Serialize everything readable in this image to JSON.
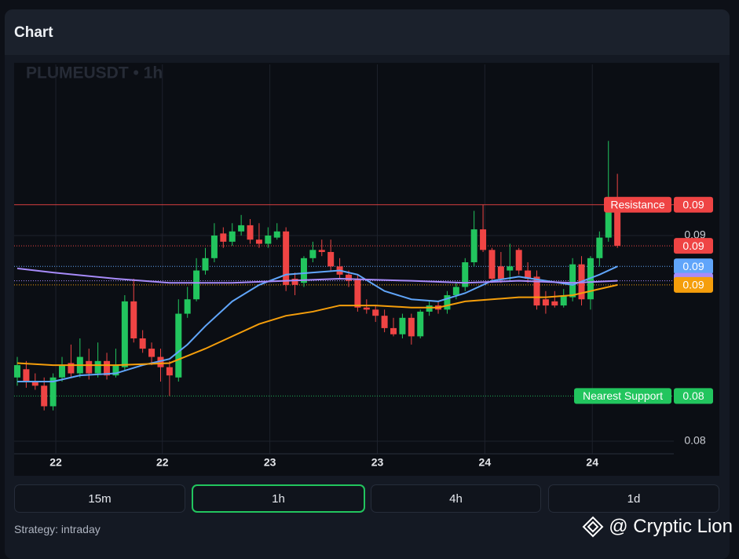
{
  "header": {
    "title": "Chart"
  },
  "chart_data": {
    "type": "candlestick",
    "title": "PLUMEUSDT • 1h",
    "up_color": "#22c55e",
    "down_color": "#ef4444",
    "open": [
      0.0831,
      0.0835,
      0.0829,
      0.0827,
      0.0817,
      0.0831,
      0.0838,
      0.0833,
      0.0839,
      0.0833,
      0.0839,
      0.0832,
      0.0836,
      0.0868,
      0.085,
      0.0845,
      0.0841,
      0.0836,
      0.0831,
      0.0862,
      0.0869,
      0.0883,
      0.0889,
      0.0901,
      0.0897,
      0.0902,
      0.0905,
      0.0898,
      0.0896,
      0.0899,
      0.0902,
      0.0879,
      0.0877,
      0.0889,
      0.0893,
      0.0892,
      0.0885,
      0.0881,
      0.0879,
      0.0865,
      0.0864,
      0.0861,
      0.0855,
      0.0852,
      0.086,
      0.0851,
      0.0863,
      0.0866,
      0.0864,
      0.0871,
      0.0875,
      0.0887,
      0.0903,
      0.0893,
      0.0885,
      0.0883,
      0.0893,
      0.0883,
      0.088,
      0.0869,
      0.0868,
      0.0866,
      0.087,
      0.0886,
      0.0869,
      0.0889,
      0.0899,
      0.0917
    ],
    "high": [
      0.0841,
      0.0839,
      0.0833,
      0.0831,
      0.0833,
      0.0841,
      0.0847,
      0.085,
      0.0845,
      0.0848,
      0.0843,
      0.0845,
      0.0871,
      0.0879,
      0.0854,
      0.0848,
      0.0845,
      0.0839,
      0.0869,
      0.0875,
      0.0889,
      0.0894,
      0.0906,
      0.0904,
      0.0906,
      0.091,
      0.0908,
      0.0906,
      0.0904,
      0.0906,
      0.0904,
      0.0882,
      0.089,
      0.0897,
      0.0898,
      0.0898,
      0.0889,
      0.0883,
      0.0881,
      0.0869,
      0.0866,
      0.0864,
      0.086,
      0.0862,
      0.0862,
      0.0864,
      0.0868,
      0.0868,
      0.0873,
      0.0877,
      0.0889,
      0.0912,
      0.0915,
      0.0894,
      0.0892,
      0.0896,
      0.0894,
      0.0887,
      0.0883,
      0.0873,
      0.0873,
      0.0874,
      0.0889,
      0.089,
      0.089,
      0.0902,
      0.0946,
      0.093
    ],
    "low": [
      0.0827,
      0.0826,
      0.0825,
      0.0815,
      0.0815,
      0.0829,
      0.0831,
      0.0831,
      0.083,
      0.0831,
      0.083,
      0.0831,
      0.0834,
      0.0848,
      0.0843,
      0.0837,
      0.0829,
      0.0822,
      0.0829,
      0.086,
      0.0868,
      0.0881,
      0.0887,
      0.0894,
      0.0895,
      0.09,
      0.0896,
      0.0894,
      0.0894,
      0.0898,
      0.0873,
      0.0871,
      0.0875,
      0.0887,
      0.089,
      0.0883,
      0.0879,
      0.0875,
      0.0863,
      0.0862,
      0.0858,
      0.0853,
      0.0851,
      0.085,
      0.0847,
      0.085,
      0.0861,
      0.0862,
      0.0862,
      0.0869,
      0.0873,
      0.0885,
      0.0892,
      0.0877,
      0.0877,
      0.0878,
      0.0881,
      0.0877,
      0.0864,
      0.0862,
      0.0865,
      0.0865,
      0.0868,
      0.0866,
      0.0864,
      0.0885,
      0.0897,
      0.0894
    ],
    "close": [
      0.0837,
      0.0829,
      0.0827,
      0.0817,
      0.0831,
      0.0837,
      0.0833,
      0.0841,
      0.0833,
      0.0839,
      0.0832,
      0.0837,
      0.0868,
      0.085,
      0.0845,
      0.0841,
      0.0836,
      0.0832,
      0.0862,
      0.0869,
      0.0883,
      0.0889,
      0.09,
      0.0897,
      0.0902,
      0.0905,
      0.0898,
      0.0896,
      0.09,
      0.0902,
      0.0876,
      0.0876,
      0.0889,
      0.0893,
      0.0892,
      0.0885,
      0.0881,
      0.0878,
      0.0865,
      0.0864,
      0.0861,
      0.0855,
      0.0852,
      0.086,
      0.0851,
      0.0863,
      0.0866,
      0.0864,
      0.0871,
      0.0875,
      0.0887,
      0.0903,
      0.0893,
      0.0879,
      0.0879,
      0.0885,
      0.0883,
      0.0879,
      0.0866,
      0.0866,
      0.0866,
      0.0871,
      0.0886,
      0.0869,
      0.0889,
      0.0899,
      0.0917,
      0.0895
    ],
    "xlim": [
      -0.35,
      73.3
    ],
    "xticks": [
      {
        "value": 4.3,
        "label": "22"
      },
      {
        "value": 16.2,
        "label": "22"
      },
      {
        "value": 28.2,
        "label": "23"
      },
      {
        "value": 40.2,
        "label": "23"
      },
      {
        "value": 52.2,
        "label": "24"
      },
      {
        "value": 64.2,
        "label": "24"
      }
    ],
    "ylim": [
      0.07939,
      0.09832
    ],
    "yticks": [
      0.08,
      0.09
    ],
    "grid": true,
    "series": [
      {
        "color": "#60a5fa",
        "x": [
          0,
          4,
          7,
          11,
          14,
          17,
          19,
          21,
          24,
          27,
          30,
          33,
          36,
          38,
          41,
          44,
          47,
          50,
          53,
          56,
          59,
          62,
          65,
          67
        ],
        "values": [
          0.0829,
          0.0829,
          0.0832,
          0.0833,
          0.0837,
          0.084,
          0.0847,
          0.0856,
          0.0868,
          0.0876,
          0.0881,
          0.0882,
          0.0883,
          0.0881,
          0.0873,
          0.0869,
          0.0868,
          0.0872,
          0.0878,
          0.088,
          0.0878,
          0.0876,
          0.0881,
          0.0885
        ],
        "last_label": "0.09"
      },
      {
        "color": "#a78bfa",
        "x": [
          0,
          4,
          11,
          17,
          24,
          30,
          36,
          44,
          50,
          56,
          62,
          67
        ],
        "values": [
          0.0884,
          0.0882,
          0.0879,
          0.0877,
          0.0877,
          0.0878,
          0.0879,
          0.0878,
          0.0877,
          0.0878,
          0.0877,
          0.0878
        ],
        "last_label": "0.09"
      },
      {
        "color": "#f59e0b",
        "x": [
          0,
          4,
          11,
          17,
          21,
          24,
          27,
          30,
          33,
          36,
          40,
          44,
          47,
          50,
          53,
          56,
          59,
          62,
          65,
          67
        ],
        "values": [
          0.0838,
          0.0837,
          0.0837,
          0.0838,
          0.0845,
          0.0851,
          0.0857,
          0.0861,
          0.0863,
          0.0866,
          0.0866,
          0.0865,
          0.0865,
          0.0868,
          0.0869,
          0.087,
          0.087,
          0.0871,
          0.0874,
          0.0876
        ],
        "last_label": "0.09"
      }
    ],
    "last_price": {
      "value": 0.0895,
      "label": "0.09",
      "color": "#ef4444"
    },
    "levels": [
      {
        "label": "Resistance",
        "value": 0.0915,
        "value_label": "0.09",
        "color": "#ef4444",
        "style": "solid"
      },
      {
        "label": "Nearest Support",
        "value": 0.0822,
        "value_label": "0.08",
        "color": "#22c55e",
        "style": "dotted"
      }
    ]
  },
  "timeframes": {
    "options": [
      "15m",
      "1h",
      "4h",
      "1d"
    ],
    "active": 1
  },
  "footer": {
    "strategy": "Strategy: intraday",
    "brand": "@ Cryptic Lion"
  }
}
